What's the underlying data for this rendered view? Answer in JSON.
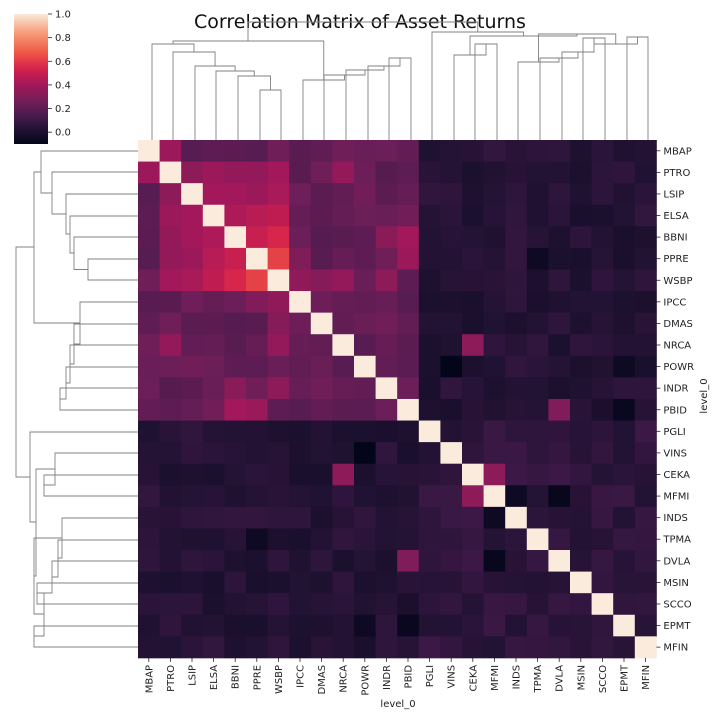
{
  "chart_data": {
    "type": "heatmap",
    "title": "Correlation Matrix of Asset Returns",
    "xlabel": "level_0",
    "ylabel": "level_0",
    "labels": [
      "MBAP",
      "PTRO",
      "LSIP",
      "ELSA",
      "BBNI",
      "PPRE",
      "WSBP",
      "IPCC",
      "DMAS",
      "NRCA",
      "POWR",
      "INDR",
      "PBID",
      "PGLI",
      "VINS",
      "CEKA",
      "MFMI",
      "INDS",
      "TPMA",
      "DVLA",
      "MSIN",
      "SCCO",
      "EPMT",
      "MFIN"
    ],
    "colorbar": {
      "min": -0.1,
      "max": 1.0,
      "ticks": [
        "0.0",
        "0.2",
        "0.4",
        "0.6",
        "0.8",
        "1.0"
      ],
      "tick_values": [
        0.0,
        0.2,
        0.4,
        0.6,
        0.8,
        1.0
      ]
    },
    "colormap": "rocket",
    "cluster_groups": [
      [
        "MBAP",
        "PTRO",
        "LSIP",
        "ELSA",
        "BBNI",
        "PPRE",
        "WSBP",
        "IPCC",
        "DMAS",
        "NRCA",
        "POWR",
        "INDR",
        "PBID"
      ],
      [
        "PGLI",
        "VINS",
        "CEKA",
        "MFMI",
        "INDS",
        "TPMA",
        "DVLA",
        "MSIN",
        "SCCO",
        "EPMT",
        "MFIN"
      ]
    ],
    "group_stats": {
      "within_first": 0.22,
      "within_second": 0.06,
      "between": 0.03,
      "strong_pairs": [
        [
          "MBAP",
          "PTRO",
          0.38
        ],
        [
          "PTRO",
          "LSIP",
          0.34
        ],
        [
          "PTRO",
          "ELSA",
          0.38
        ],
        [
          "PTRO",
          "BBNI",
          0.36
        ],
        [
          "PTRO",
          "PPRE",
          0.36
        ],
        [
          "PTRO",
          "WSBP",
          0.4
        ],
        [
          "LSIP",
          "ELSA",
          0.4
        ],
        [
          "LSIP",
          "BBNI",
          0.4
        ],
        [
          "LSIP",
          "PPRE",
          0.38
        ],
        [
          "LSIP",
          "WSBP",
          0.42
        ],
        [
          "ELSA",
          "BBNI",
          0.43
        ],
        [
          "ELSA",
          "PPRE",
          0.46
        ],
        [
          "ELSA",
          "WSBP",
          0.48
        ],
        [
          "BBNI",
          "PPRE",
          0.5
        ],
        [
          "BBNI",
          "WSBP",
          0.55
        ],
        [
          "PPRE",
          "WSBP",
          0.62
        ],
        [
          "PTRO",
          "NRCA",
          0.36
        ],
        [
          "WSBP",
          "IPCC",
          0.35
        ],
        [
          "WSBP",
          "NRCA",
          0.36
        ],
        [
          "WSBP",
          "DMAS",
          0.32
        ],
        [
          "BBNI",
          "PBID",
          0.4
        ],
        [
          "PPRE",
          "PBID",
          0.38
        ],
        [
          "BBNI",
          "INDR",
          0.33
        ],
        [
          "WSBP",
          "INDR",
          0.34
        ],
        [
          "PPRE",
          "IPCC",
          0.3
        ],
        [
          "NRCA",
          "CEKA",
          0.34
        ],
        [
          "CEKA",
          "MFMI",
          0.34
        ],
        [
          "DVLA",
          "PBID",
          0.3
        ]
      ],
      "low_pairs": [
        [
          "VINS",
          "POWR",
          -0.1
        ],
        [
          "DVLA",
          "MFMI",
          -0.08
        ],
        [
          "EPMT",
          "PBID",
          -0.07
        ],
        [
          "TPMA",
          "PPRE",
          -0.05
        ],
        [
          "MFMI",
          "INDS",
          -0.05
        ],
        [
          "POWR",
          "EPMT",
          -0.05
        ]
      ]
    }
  }
}
